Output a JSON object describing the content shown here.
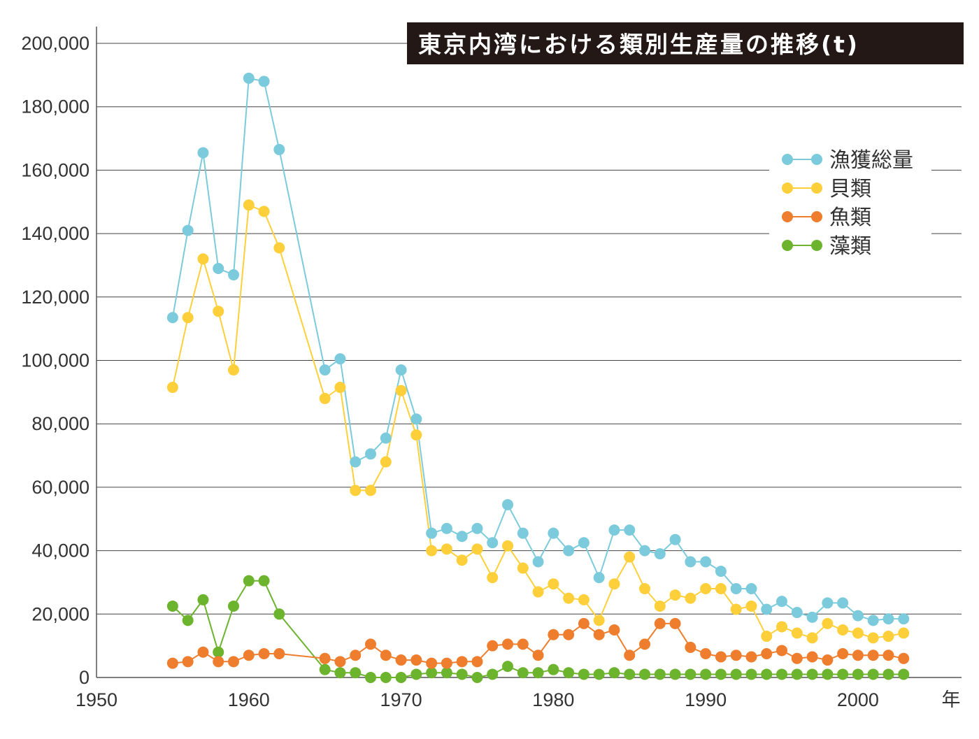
{
  "chart_data": {
    "type": "line",
    "title": "東京内湾における類別生産量の推移(t)",
    "xlabel": "年",
    "ylabel": "",
    "xlim": [
      1950,
      2005
    ],
    "ylim": [
      0,
      200000
    ],
    "x_ticks": [
      "1950",
      "1960",
      "1970",
      "1980",
      "1990",
      "2000"
    ],
    "y_ticks": [
      "0",
      "20,000",
      "40,000",
      "60,000",
      "80,000",
      "100,000",
      "120,000",
      "140,000",
      "160,000",
      "180,000",
      "200,000"
    ],
    "grid": "horizontal",
    "legend_position": "top-right",
    "x": [
      1955,
      1956,
      1957,
      1958,
      1959,
      1960,
      1961,
      1962,
      1965,
      1966,
      1967,
      1968,
      1969,
      1970,
      1971,
      1972,
      1973,
      1974,
      1975,
      1976,
      1977,
      1978,
      1979,
      1980,
      1981,
      1982,
      1983,
      1984,
      1985,
      1986,
      1987,
      1988,
      1989,
      1990,
      1991,
      1992,
      1993,
      1994,
      1995,
      1996,
      1997,
      1998,
      1999,
      2000,
      2001,
      2002,
      2003
    ],
    "series": [
      {
        "name": "漁獲総量",
        "color": "#7ccbdc",
        "values": [
          113500,
          141000,
          165500,
          129000,
          127000,
          189000,
          188000,
          166500,
          97000,
          100500,
          68000,
          70500,
          75500,
          97000,
          81500,
          45500,
          47000,
          44500,
          47000,
          42500,
          54500,
          45500,
          36500,
          45500,
          40000,
          42500,
          31500,
          46500,
          46500,
          40000,
          39000,
          43500,
          36500,
          36500,
          33500,
          28000,
          28000,
          21500,
          24000,
          20500,
          19000,
          23500,
          23500,
          19500,
          18000,
          18500,
          18500
        ]
      },
      {
        "name": "貝類",
        "color": "#fdd03b",
        "values": [
          91500,
          113500,
          132000,
          115500,
          97000,
          149000,
          147000,
          135500,
          88000,
          91500,
          59000,
          59000,
          68000,
          90500,
          76500,
          40000,
          40500,
          37000,
          40500,
          31500,
          41500,
          34500,
          27000,
          29500,
          25000,
          24500,
          18000,
          29500,
          38000,
          28000,
          22500,
          26000,
          25000,
          28000,
          28000,
          21500,
          22500,
          13000,
          16000,
          14000,
          12500,
          17000,
          15000,
          14000,
          12500,
          13000,
          14000
        ]
      },
      {
        "name": "魚類",
        "color": "#ee7e2e",
        "values": [
          4500,
          5000,
          8000,
          5000,
          5000,
          7000,
          7500,
          7500,
          6000,
          5000,
          7000,
          10500,
          7000,
          5500,
          5500,
          4500,
          4500,
          5000,
          5000,
          10000,
          10500,
          10500,
          7000,
          13500,
          13500,
          17000,
          13500,
          15000,
          7000,
          10500,
          17000,
          17000,
          9500,
          7500,
          6500,
          7000,
          6500,
          7500,
          8500,
          6000,
          6500,
          5500,
          7500,
          7000,
          7000,
          7000,
          6000
        ]
      },
      {
        "name": "藻類",
        "color": "#6cb32e",
        "values": [
          22500,
          18000,
          24500,
          8000,
          22500,
          30500,
          30500,
          20000,
          2500,
          1500,
          1500,
          0,
          0,
          0,
          1000,
          1500,
          1500,
          1000,
          0,
          1000,
          3500,
          1500,
          1500,
          2500,
          1500,
          1000,
          1000,
          1500,
          1000,
          1000,
          1000,
          1000,
          1000,
          1000,
          1000,
          1000,
          1000,
          1000,
          1000,
          1000,
          1000,
          1000,
          1000,
          1000,
          1000,
          1000,
          1000
        ]
      }
    ]
  }
}
